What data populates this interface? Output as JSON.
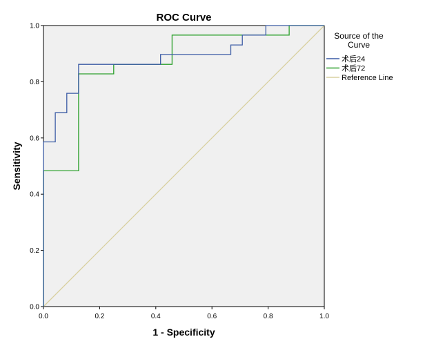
{
  "chart_data": {
    "type": "line",
    "title": "ROC Curve",
    "xlabel": "1 - Specificity",
    "ylabel": "Sensitivity",
    "xlim": [
      0.0,
      1.0
    ],
    "ylim": [
      0.0,
      1.0
    ],
    "x_ticks": [
      "0.0",
      "0.2",
      "0.4",
      "0.6",
      "0.8",
      "1.0"
    ],
    "y_ticks": [
      "0.0",
      "0.2",
      "0.4",
      "0.6",
      "0.8",
      "1.0"
    ],
    "grid": false,
    "background": "#f0f0f0",
    "legend": {
      "title": "Source of the Curve",
      "title_lines": [
        "Source of the",
        "Curve"
      ],
      "position": "right"
    },
    "series": [
      {
        "name": "术后24",
        "color": "#3b5ba5",
        "style": "step",
        "points": [
          [
            0.0,
            0.0
          ],
          [
            0.0,
            0.586
          ],
          [
            0.042,
            0.586
          ],
          [
            0.042,
            0.69
          ],
          [
            0.083,
            0.69
          ],
          [
            0.083,
            0.759
          ],
          [
            0.125,
            0.759
          ],
          [
            0.125,
            0.862
          ],
          [
            0.417,
            0.862
          ],
          [
            0.417,
            0.897
          ],
          [
            0.667,
            0.897
          ],
          [
            0.667,
            0.931
          ],
          [
            0.708,
            0.931
          ],
          [
            0.708,
            0.966
          ],
          [
            0.792,
            0.966
          ],
          [
            0.792,
            1.0
          ],
          [
            1.0,
            1.0
          ]
        ]
      },
      {
        "name": "术后72",
        "color": "#2ca02c",
        "style": "step",
        "points": [
          [
            0.0,
            0.0
          ],
          [
            0.0,
            0.483
          ],
          [
            0.125,
            0.483
          ],
          [
            0.125,
            0.828
          ],
          [
            0.25,
            0.828
          ],
          [
            0.25,
            0.862
          ],
          [
            0.458,
            0.862
          ],
          [
            0.458,
            0.966
          ],
          [
            0.875,
            0.966
          ],
          [
            0.875,
            1.0
          ],
          [
            1.0,
            1.0
          ]
        ]
      },
      {
        "name": "Reference Line",
        "color": "#d8d0a0",
        "style": "line",
        "points": [
          [
            0.0,
            0.0
          ],
          [
            1.0,
            1.0
          ]
        ]
      }
    ]
  }
}
